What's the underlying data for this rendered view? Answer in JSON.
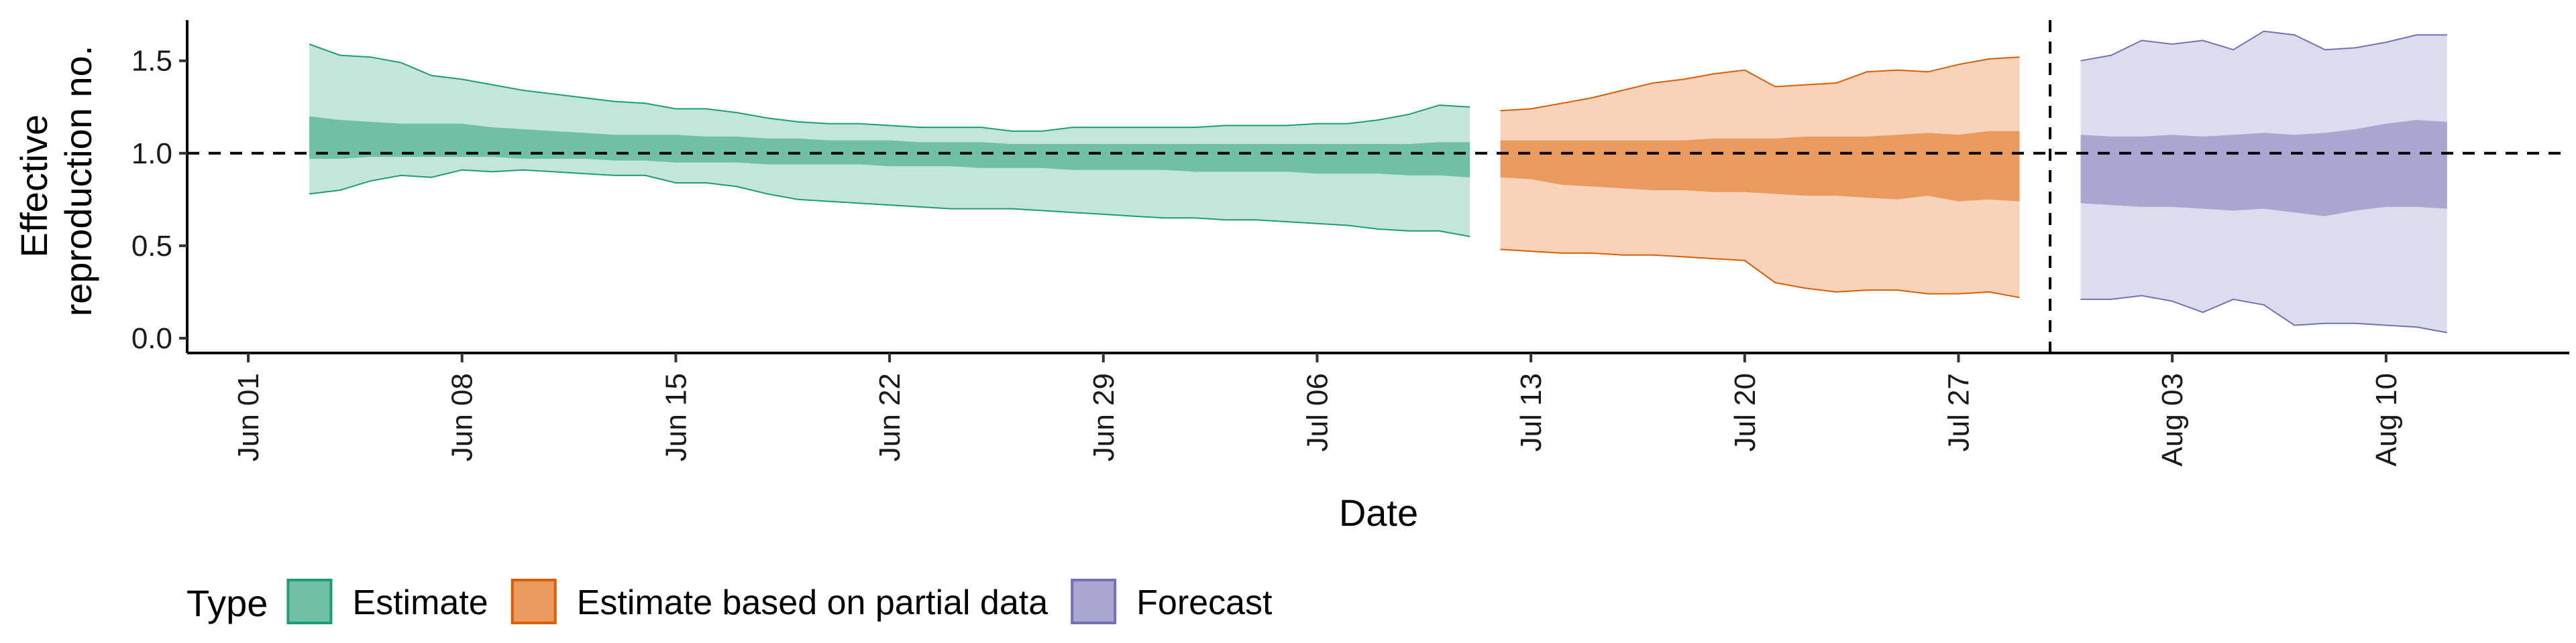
{
  "chart_data": {
    "type": "area",
    "xlabel": "Date",
    "ylabel_lines": [
      "Effective",
      "reproduction no."
    ],
    "x_ticks": [
      {
        "date": "2020-06-01",
        "label": "Jun 01"
      },
      {
        "date": "2020-06-08",
        "label": "Jun 08"
      },
      {
        "date": "2020-06-15",
        "label": "Jun 15"
      },
      {
        "date": "2020-06-22",
        "label": "Jun 22"
      },
      {
        "date": "2020-06-29",
        "label": "Jun 29"
      },
      {
        "date": "2020-07-06",
        "label": "Jul 06"
      },
      {
        "date": "2020-07-13",
        "label": "Jul 13"
      },
      {
        "date": "2020-07-20",
        "label": "Jul 20"
      },
      {
        "date": "2020-07-27",
        "label": "Jul 27"
      },
      {
        "date": "2020-08-03",
        "label": "Aug 03"
      },
      {
        "date": "2020-08-10",
        "label": "Aug 10"
      }
    ],
    "xlim": [
      "2020-05-30",
      "2020-08-16"
    ],
    "y_ticks": [
      {
        "value": 0.0,
        "label": "0.0"
      },
      {
        "value": 0.5,
        "label": "0.5"
      },
      {
        "value": 1.0,
        "label": "1.0"
      },
      {
        "value": 1.5,
        "label": "1.5"
      }
    ],
    "ylim": [
      -0.08,
      1.72
    ],
    "reference_hline": 1.0,
    "reference_vline": "2020-07-30",
    "grid": false,
    "legend": {
      "position": "bottom-left",
      "title": "Type",
      "entries": [
        {
          "label": "Estimate",
          "fill": "#70c0a6",
          "stroke": "#1b9e77"
        },
        {
          "label": "Estimate based on partial data",
          "fill": "#eb9a5e",
          "stroke": "#d95f02"
        },
        {
          "label": "Forecast",
          "fill": "#a9a6d0",
          "stroke": "#7570b3"
        }
      ]
    },
    "series": [
      {
        "name": "Estimate",
        "color": "#1b9e77",
        "outer_fill": "#c4e6da",
        "inner_fill": "#70c0a6",
        "x": [
          "2020-06-03",
          "2020-06-04",
          "2020-06-05",
          "2020-06-06",
          "2020-06-07",
          "2020-06-08",
          "2020-06-09",
          "2020-06-10",
          "2020-06-11",
          "2020-06-12",
          "2020-06-13",
          "2020-06-14",
          "2020-06-15",
          "2020-06-16",
          "2020-06-17",
          "2020-06-18",
          "2020-06-19",
          "2020-06-20",
          "2020-06-21",
          "2020-06-22",
          "2020-06-23",
          "2020-06-24",
          "2020-06-25",
          "2020-06-26",
          "2020-06-27",
          "2020-06-28",
          "2020-06-29",
          "2020-06-30",
          "2020-07-01",
          "2020-07-02",
          "2020-07-03",
          "2020-07-04",
          "2020-07-05",
          "2020-07-06",
          "2020-07-07",
          "2020-07-08",
          "2020-07-09",
          "2020-07-10",
          "2020-07-11"
        ],
        "lower90": [
          0.78,
          0.8,
          0.85,
          0.88,
          0.87,
          0.91,
          0.9,
          0.91,
          0.9,
          0.89,
          0.88,
          0.88,
          0.84,
          0.84,
          0.82,
          0.78,
          0.75,
          0.74,
          0.73,
          0.72,
          0.71,
          0.7,
          0.7,
          0.7,
          0.69,
          0.68,
          0.67,
          0.66,
          0.65,
          0.65,
          0.64,
          0.64,
          0.63,
          0.62,
          0.61,
          0.59,
          0.58,
          0.58,
          0.55
        ],
        "lower50": [
          0.97,
          0.97,
          0.98,
          0.98,
          0.98,
          0.98,
          0.98,
          0.97,
          0.97,
          0.97,
          0.96,
          0.96,
          0.95,
          0.95,
          0.95,
          0.94,
          0.94,
          0.94,
          0.94,
          0.93,
          0.93,
          0.93,
          0.92,
          0.92,
          0.92,
          0.91,
          0.91,
          0.91,
          0.91,
          0.9,
          0.9,
          0.9,
          0.9,
          0.89,
          0.89,
          0.89,
          0.88,
          0.88,
          0.87
        ],
        "upper50": [
          1.2,
          1.18,
          1.17,
          1.16,
          1.16,
          1.16,
          1.14,
          1.13,
          1.12,
          1.11,
          1.1,
          1.1,
          1.1,
          1.09,
          1.09,
          1.08,
          1.08,
          1.07,
          1.07,
          1.07,
          1.06,
          1.06,
          1.06,
          1.05,
          1.05,
          1.05,
          1.05,
          1.05,
          1.05,
          1.05,
          1.05,
          1.05,
          1.05,
          1.05,
          1.05,
          1.05,
          1.05,
          1.06,
          1.06
        ],
        "upper90": [
          1.59,
          1.53,
          1.52,
          1.49,
          1.42,
          1.4,
          1.37,
          1.34,
          1.32,
          1.3,
          1.28,
          1.27,
          1.24,
          1.24,
          1.22,
          1.19,
          1.17,
          1.16,
          1.16,
          1.15,
          1.14,
          1.14,
          1.14,
          1.12,
          1.12,
          1.14,
          1.14,
          1.14,
          1.14,
          1.14,
          1.15,
          1.15,
          1.15,
          1.16,
          1.16,
          1.18,
          1.21,
          1.26,
          1.25
        ]
      },
      {
        "name": "Estimate based on partial data",
        "color": "#d95f02",
        "outer_fill": "#f6d3ba",
        "inner_fill": "#eb9a5e",
        "x": [
          "2020-07-12",
          "2020-07-13",
          "2020-07-14",
          "2020-07-15",
          "2020-07-16",
          "2020-07-17",
          "2020-07-18",
          "2020-07-19",
          "2020-07-20",
          "2020-07-21",
          "2020-07-22",
          "2020-07-23",
          "2020-07-24",
          "2020-07-25",
          "2020-07-26",
          "2020-07-27",
          "2020-07-28",
          "2020-07-29"
        ],
        "lower90": [
          0.48,
          0.47,
          0.46,
          0.46,
          0.45,
          0.45,
          0.44,
          0.43,
          0.42,
          0.3,
          0.27,
          0.25,
          0.26,
          0.26,
          0.24,
          0.24,
          0.25,
          0.22
        ],
        "lower50": [
          0.87,
          0.86,
          0.83,
          0.82,
          0.81,
          0.8,
          0.8,
          0.79,
          0.79,
          0.78,
          0.77,
          0.77,
          0.76,
          0.75,
          0.77,
          0.74,
          0.75,
          0.74
        ],
        "upper50": [
          1.07,
          1.07,
          1.07,
          1.07,
          1.07,
          1.07,
          1.07,
          1.08,
          1.08,
          1.08,
          1.09,
          1.09,
          1.09,
          1.1,
          1.11,
          1.1,
          1.12,
          1.12
        ],
        "upper90": [
          1.23,
          1.24,
          1.27,
          1.3,
          1.34,
          1.38,
          1.4,
          1.43,
          1.45,
          1.36,
          1.37,
          1.38,
          1.44,
          1.45,
          1.44,
          1.48,
          1.51,
          1.52
        ]
      },
      {
        "name": "Forecast",
        "color": "#7570b3",
        "outer_fill": "#dddcee",
        "inner_fill": "#a9a6d0",
        "x": [
          "2020-07-31",
          "2020-08-01",
          "2020-08-02",
          "2020-08-03",
          "2020-08-04",
          "2020-08-05",
          "2020-08-06",
          "2020-08-07",
          "2020-08-08",
          "2020-08-09",
          "2020-08-10",
          "2020-08-11",
          "2020-08-12"
        ],
        "lower90": [
          0.21,
          0.21,
          0.23,
          0.2,
          0.14,
          0.21,
          0.18,
          0.07,
          0.08,
          0.08,
          0.07,
          0.06,
          0.03
        ],
        "lower50": [
          0.73,
          0.72,
          0.71,
          0.71,
          0.7,
          0.69,
          0.7,
          0.68,
          0.66,
          0.69,
          0.71,
          0.71,
          0.7
        ],
        "upper50": [
          1.1,
          1.09,
          1.09,
          1.1,
          1.09,
          1.1,
          1.11,
          1.1,
          1.11,
          1.13,
          1.16,
          1.18,
          1.17
        ],
        "upper90": [
          1.5,
          1.53,
          1.61,
          1.59,
          1.61,
          1.56,
          1.66,
          1.64,
          1.56,
          1.57,
          1.6,
          1.64,
          1.64
        ]
      }
    ]
  }
}
